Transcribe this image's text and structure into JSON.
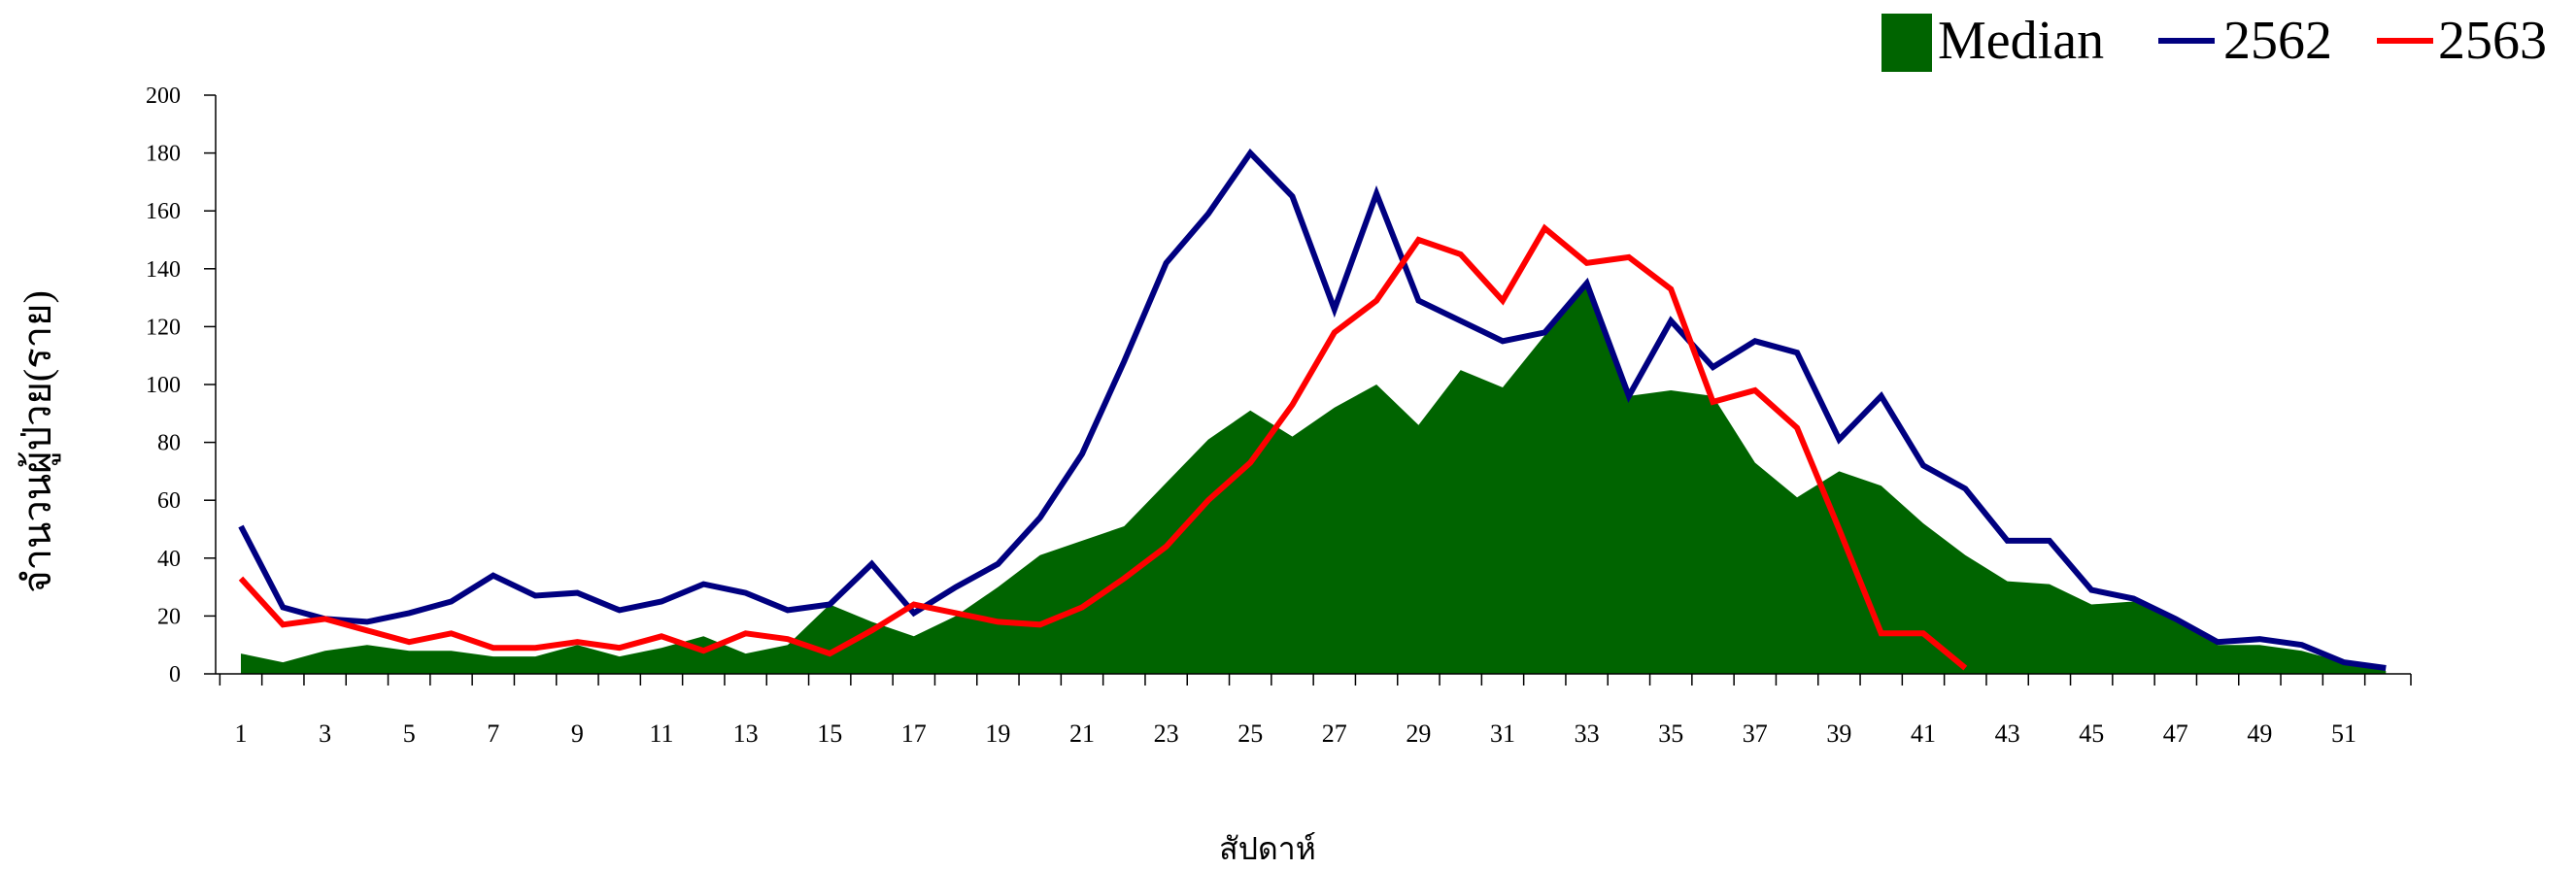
{
  "chart_data": {
    "type": "area",
    "xlabel": "สัปดาห์",
    "ylabel": "จำนวนผู้ป่วย(ราย)",
    "ylim": [
      0,
      200
    ],
    "yticks": [
      "0",
      "20",
      "40",
      "60",
      "80",
      "100",
      "120",
      "140",
      "160",
      "180",
      "200"
    ],
    "xticks": [
      "1",
      "3",
      "5",
      "7",
      "9",
      "11",
      "13",
      "15",
      "17",
      "19",
      "21",
      "23",
      "25",
      "27",
      "29",
      "31",
      "33",
      "35",
      "37",
      "39",
      "41",
      "43",
      "45",
      "47",
      "49",
      "51"
    ],
    "x_range": [
      1,
      52
    ],
    "grid": false,
    "legend_position": "top-right",
    "series": [
      {
        "name": "Median",
        "kind": "area",
        "color": "#006400",
        "values": [
          7,
          4,
          8,
          10,
          8,
          8,
          6,
          6,
          10,
          6,
          9,
          13,
          7,
          10,
          24,
          18,
          13,
          20,
          30,
          41,
          46,
          51,
          66,
          81,
          91,
          82,
          92,
          100,
          86,
          105,
          99,
          117,
          135,
          96,
          98,
          96,
          73,
          61,
          70,
          65,
          52,
          41,
          32,
          31,
          24,
          25,
          18,
          10,
          10,
          8,
          4,
          1
        ]
      },
      {
        "name": "2562",
        "kind": "line",
        "color": "#000080",
        "values": [
          51,
          23,
          19,
          18,
          21,
          25,
          34,
          27,
          28,
          22,
          25,
          31,
          28,
          22,
          24,
          38,
          21,
          30,
          38,
          54,
          76,
          108,
          142,
          159,
          180,
          165,
          126,
          166,
          129,
          122,
          115,
          118,
          135,
          96,
          122,
          106,
          115,
          111,
          81,
          96,
          72,
          64,
          46,
          46,
          29,
          26,
          19,
          11,
          12,
          10,
          4,
          2
        ]
      },
      {
        "name": "2563",
        "kind": "line",
        "color": "#ff0000",
        "values": [
          33,
          17,
          19,
          15,
          11,
          14,
          9,
          9,
          11,
          9,
          13,
          8,
          14,
          12,
          7,
          15,
          24,
          21,
          18,
          17,
          23,
          33,
          44,
          60,
          73,
          93,
          118,
          129,
          150,
          145,
          129,
          154,
          142,
          144,
          133,
          94,
          98,
          85,
          50,
          14,
          14,
          2
        ]
      }
    ]
  }
}
